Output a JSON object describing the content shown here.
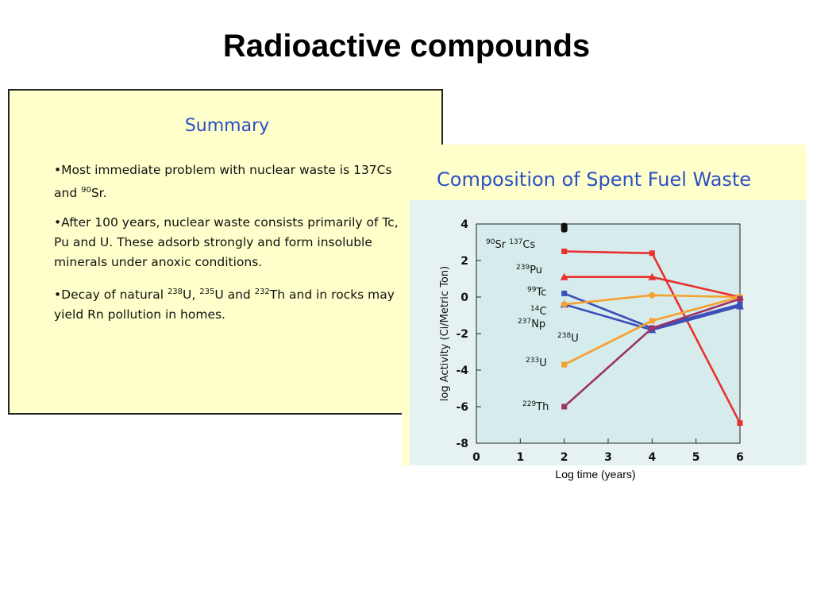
{
  "slide": {
    "title": "Radioactive compounds"
  },
  "summary": {
    "title": "Summary",
    "bullets": [
      {
        "parts": [
          {
            "t": "•Most immediate problem with nuclear waste is 137Cs and "
          },
          {
            "sup": "90"
          },
          {
            "t": "Sr."
          }
        ]
      },
      {
        "parts": [
          {
            "t": "•After 100 years, nuclear waste consists primarily of Tc, Pu and U.  These adsorb strongly and form insoluble minerals under anoxic conditions."
          }
        ]
      },
      {
        "parts": [
          {
            "t": "•Decay of natural "
          },
          {
            "sup": "238"
          },
          {
            "t": "U, "
          },
          {
            "sup": "235"
          },
          {
            "t": "U and "
          },
          {
            "sup": "232"
          },
          {
            "t": "Th and in rocks may yield Rn pollution in homes."
          }
        ]
      }
    ]
  },
  "chart_data": {
    "type": "line",
    "title": "Composition of Spent Fuel Waste",
    "xlabel": "Log time (years)",
    "ylabel": "log Activity (Ci/Metric Ton)",
    "xlim": [
      0,
      6
    ],
    "ylim": [
      -8,
      4
    ],
    "xticks": [
      0,
      1,
      2,
      3,
      4,
      5,
      6
    ],
    "yticks": [
      4,
      2,
      0,
      -2,
      -4,
      -6,
      -8
    ],
    "grid": false,
    "background": "#d6ecec",
    "series": [
      {
        "name": "239Pu",
        "label_sup": "239",
        "label_base": "Pu",
        "color": "#e8302e",
        "marker": "square",
        "x": [
          2,
          4,
          6
        ],
        "y": [
          2.5,
          2.4,
          -6.9
        ]
      },
      {
        "name": "99Tc",
        "label_sup": "99",
        "label_base": "Tc",
        "color": "#e8302e",
        "marker": "triangle",
        "x": [
          2,
          4,
          6
        ],
        "y": [
          1.1,
          1.1,
          0
        ]
      },
      {
        "name": "14C",
        "label_sup": "14",
        "label_base": "C",
        "color": "#3c4fb8",
        "marker": "square",
        "x": [
          2,
          4,
          6
        ],
        "y": [
          0.2,
          -1.7,
          -0.4
        ]
      },
      {
        "name": "237Np",
        "label_sup": "237",
        "label_base": "Np",
        "color": "#3c4fb8",
        "marker": "triangle",
        "x": [
          2,
          4,
          6
        ],
        "y": [
          -0.4,
          -1.8,
          -0.5
        ]
      },
      {
        "name": "238U",
        "label_sup": "238",
        "label_base": "U",
        "color": "#f5a030",
        "marker": "circle",
        "x": [
          2,
          4,
          6
        ],
        "y": [
          -0.4,
          0.1,
          0
        ]
      },
      {
        "name": "233U",
        "label_sup": "233",
        "label_base": "U",
        "color": "#f5a030",
        "marker": "square",
        "x": [
          2,
          4,
          6
        ],
        "y": [
          -3.7,
          -1.3,
          0
        ]
      },
      {
        "name": "229Th",
        "label_sup": "229",
        "label_base": "Th",
        "color": "#9c3268",
        "marker": "square",
        "x": [
          2,
          4,
          6
        ],
        "y": [
          -6,
          -1.7,
          -0.1
        ]
      }
    ],
    "marker_only": [
      {
        "name": "90Sr 137Cs",
        "color": "#111111",
        "x": 2,
        "y": 3.8
      }
    ],
    "annotations": [
      {
        "id": "sr-cs",
        "parts": [
          {
            "sup": "90"
          },
          {
            "t": "Sr "
          },
          {
            "sup": "137"
          },
          {
            "t": "Cs"
          }
        ]
      },
      {
        "id": "pu",
        "parts": [
          {
            "sup": "239"
          },
          {
            "t": "Pu"
          }
        ]
      },
      {
        "id": "tc",
        "parts": [
          {
            "sup": "99"
          },
          {
            "t": "Tc"
          }
        ]
      },
      {
        "id": "c",
        "parts": [
          {
            "sup": "14"
          },
          {
            "t": "C"
          }
        ]
      },
      {
        "id": "np",
        "parts": [
          {
            "sup": "237"
          },
          {
            "t": "Np"
          }
        ]
      },
      {
        "id": "u238",
        "parts": [
          {
            "sup": "238"
          },
          {
            "t": "U"
          }
        ]
      },
      {
        "id": "u233",
        "parts": [
          {
            "sup": "233"
          },
          {
            "t": "U"
          }
        ]
      },
      {
        "id": "th",
        "parts": [
          {
            "sup": "229"
          },
          {
            "t": "Th"
          }
        ]
      }
    ]
  }
}
